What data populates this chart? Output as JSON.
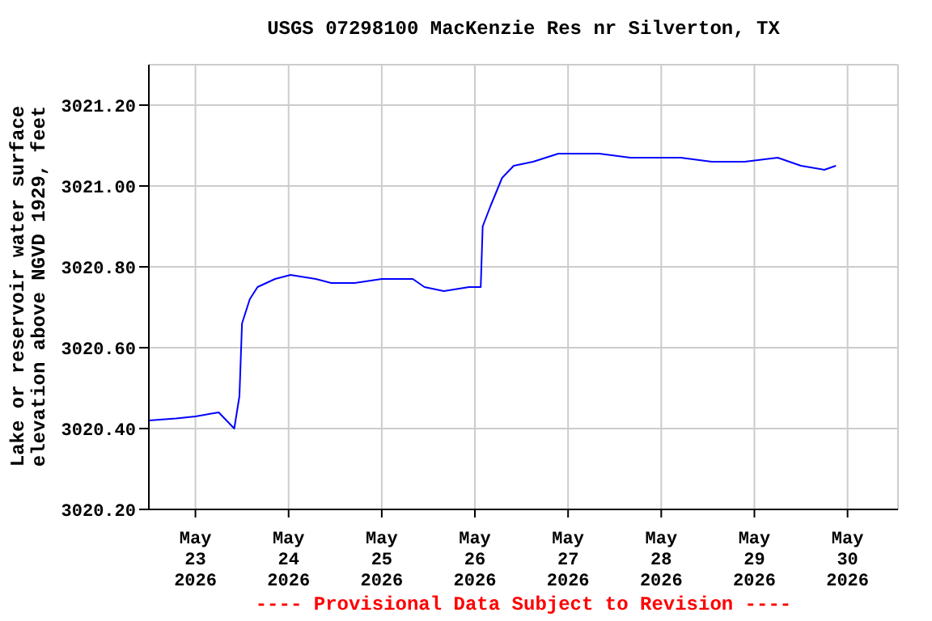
{
  "chart_data": {
    "type": "line",
    "title": "USGS 07298100 MacKenzie Res nr Silverton, TX",
    "ylabel": "Lake or reservoir water surface\nelevation above NGVD 1929, feet",
    "annotations": [
      "---- Provisional Data Subject to Revision ----"
    ],
    "x": [
      "2026-05-22T12:00",
      "2026-05-22T19:00",
      "2026-05-23T00:00",
      "2026-05-23T06:00",
      "2026-05-23T10:00",
      "2026-05-23T11:20",
      "2026-05-23T12:00",
      "2026-05-23T14:00",
      "2026-05-23T16:00",
      "2026-05-23T20:30",
      "2026-05-24T00:30",
      "2026-05-24T07:00",
      "2026-05-24T11:00",
      "2026-05-24T17:00",
      "2026-05-25T00:00",
      "2026-05-25T08:00",
      "2026-05-25T11:00",
      "2026-05-25T16:00",
      "2026-05-25T22:30",
      "2026-05-26T01:30",
      "2026-05-26T02:00",
      "2026-05-26T04:00",
      "2026-05-26T07:00",
      "2026-05-26T10:00",
      "2026-05-26T15:00",
      "2026-05-26T21:30",
      "2026-05-27T08:00",
      "2026-05-27T16:00",
      "2026-05-28T05:00",
      "2026-05-28T13:00",
      "2026-05-28T21:30",
      "2026-05-29T06:00",
      "2026-05-29T12:00",
      "2026-05-29T18:00",
      "2026-05-29T21:00"
    ],
    "series": [
      {
        "color": "#0000ff",
        "values": [
          3020.42,
          3020.425,
          3020.43,
          3020.44,
          3020.4,
          3020.48,
          3020.66,
          3020.72,
          3020.75,
          3020.77,
          3020.78,
          3020.77,
          3020.76,
          3020.76,
          3020.77,
          3020.77,
          3020.75,
          3020.74,
          3020.75,
          3020.75,
          3020.9,
          3020.95,
          3021.02,
          3021.05,
          3021.06,
          3021.08,
          3021.08,
          3021.07,
          3021.07,
          3021.06,
          3021.06,
          3021.07,
          3021.05,
          3021.04,
          3021.05
        ]
      }
    ],
    "xlim": [
      "2026-05-22T12:00",
      "2026-05-30T13:00"
    ],
    "xticks": [
      {
        "value": "2026-05-23",
        "label": "May\n23\n2026"
      },
      {
        "value": "2026-05-24",
        "label": "May\n24\n2026"
      },
      {
        "value": "2026-05-25",
        "label": "May\n25\n2026"
      },
      {
        "value": "2026-05-26",
        "label": "May\n26\n2026"
      },
      {
        "value": "2026-05-27",
        "label": "May\n27\n2026"
      },
      {
        "value": "2026-05-28",
        "label": "May\n28\n2026"
      },
      {
        "value": "2026-05-29",
        "label": "May\n29\n2026"
      },
      {
        "value": "2026-05-30",
        "label": "May\n30\n2026"
      }
    ],
    "ylim": [
      3020.2,
      3021.3
    ],
    "yticks": [
      {
        "value": 3020.2,
        "label": "3020.20"
      },
      {
        "value": 3020.4,
        "label": "3020.40"
      },
      {
        "value": 3020.6,
        "label": "3020.60"
      },
      {
        "value": 3020.8,
        "label": "3020.80"
      },
      {
        "value": 3021.0,
        "label": "3021.00"
      },
      {
        "value": 3021.2,
        "label": "3021.20"
      }
    ],
    "grid": true,
    "marker": "none",
    "line_style": "solid"
  }
}
